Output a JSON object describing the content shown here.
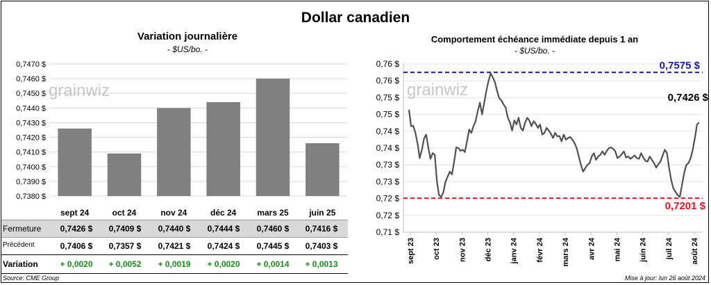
{
  "title": "Dollar canadien",
  "left_chart": {
    "title": "Variation  journalière",
    "unit": "- $US/bo. -",
    "watermark": "grainwiz"
  },
  "right_chart": {
    "title": "Comportement échéance immédiate depuis 1 an",
    "unit": "- $US/bo. -",
    "watermark": "grainwiz",
    "high_label": "0,7575 $",
    "low_label": "0,7201 $",
    "last_label": "0,7426 $"
  },
  "table": {
    "row_labels": [
      "Fermeture",
      "Précédent",
      "Variation"
    ],
    "fermeture": [
      "0,7426  $",
      "0,7409  $",
      "0,7440  $",
      "0,7444  $",
      "0,7460  $",
      "0,7416  $"
    ],
    "precedent": [
      "0,7406  $",
      "0,7357  $",
      "0,7421  $",
      "0,7424  $",
      "0,7445  $",
      "0,7403  $"
    ],
    "variation": [
      "+ 0,0020",
      "+ 0,0052",
      "+ 0,0019",
      "+ 0,0020",
      "+ 0,0014",
      "+ 0,0013"
    ]
  },
  "footer": {
    "source": "Source: CME Group",
    "updated": "Mise à jour: lun 26 août 2024"
  },
  "colors": {
    "bar": "#808080",
    "line": "#505050",
    "high": "#1f1f9c",
    "low": "#e0141e",
    "positive": "#1a8a1a"
  },
  "chart_data": [
    {
      "type": "bar",
      "title": "Variation  journalière",
      "categories": [
        "sept 24",
        "oct 24",
        "nov 24",
        "déc 24",
        "mars 25",
        "juin 25"
      ],
      "values": [
        0.7426,
        0.7409,
        0.744,
        0.7444,
        0.746,
        0.7416
      ],
      "ylim": [
        0.738,
        0.747
      ],
      "yticks": [
        "0,7380 $",
        "0,7390 $",
        "0,7400 $",
        "0,7410 $",
        "0,7420 $",
        "0,7430 $",
        "0,7440 $",
        "0,7450 $",
        "0,7460 $",
        "0,7470 $"
      ],
      "ylabel": "",
      "grid": true
    },
    {
      "type": "line",
      "title": "Comportement échéance immédiate depuis 1 an",
      "ylim": [
        0.71,
        0.76
      ],
      "yticks": [
        "0,71 $",
        "0,72 $",
        "0,72 $",
        "0,73 $",
        "0,73 $",
        "0,74 $",
        "0,74 $",
        "0,75 $",
        "0,75 $",
        "0,76 $",
        "0,76 $"
      ],
      "xticks": [
        "sept 23",
        "oct 23",
        "nov 23",
        "déc 23",
        "janv 24",
        "févr 24",
        "mars 24",
        "avr 24",
        "mai 24",
        "juin 24",
        "juil 24",
        "août 24"
      ],
      "high": 0.7575,
      "low": 0.7201,
      "last": 0.7426,
      "series": [
        {
          "values": [
            0.7464,
            0.7415,
            0.7416,
            0.7395,
            0.7363,
            0.732,
            0.7345,
            0.7378,
            0.739,
            0.7351,
            0.7318,
            0.7335,
            0.733,
            0.725,
            0.721,
            0.7205,
            0.7218,
            0.725,
            0.7265,
            0.728,
            0.7272,
            0.7308,
            0.7352,
            0.735,
            0.7342,
            0.7345,
            0.7338,
            0.737,
            0.7405,
            0.7395,
            0.7415,
            0.743,
            0.746,
            0.7485,
            0.745,
            0.7485,
            0.752,
            0.755,
            0.7572,
            0.756,
            0.7545,
            0.752,
            0.7498,
            0.7492,
            0.748,
            0.747,
            0.744,
            0.7426,
            0.7402,
            0.7432,
            0.742,
            0.744,
            0.741,
            0.7402,
            0.7425,
            0.744,
            0.7432,
            0.7415,
            0.743,
            0.7422,
            0.741,
            0.742,
            0.739,
            0.7395,
            0.741,
            0.7402,
            0.7393,
            0.738,
            0.7395,
            0.7385,
            0.7386,
            0.737,
            0.739,
            0.7375,
            0.738,
            0.7383,
            0.7375,
            0.7365,
            0.735,
            0.7325,
            0.73,
            0.728,
            0.729,
            0.73,
            0.7305,
            0.7325,
            0.7335,
            0.7315,
            0.7325,
            0.733,
            0.734,
            0.733,
            0.7342,
            0.735,
            0.7352,
            0.7348,
            0.734,
            0.732,
            0.7325,
            0.7332,
            0.734,
            0.7322,
            0.7325,
            0.7318,
            0.7323,
            0.7328,
            0.732,
            0.7318,
            0.7335,
            0.7322,
            0.7312,
            0.731,
            0.7325,
            0.7315,
            0.7305,
            0.7292,
            0.7302,
            0.731,
            0.7328,
            0.7345,
            0.7335,
            0.729,
            0.7255,
            0.723,
            0.722,
            0.721,
            0.7205,
            0.724,
            0.7275,
            0.73,
            0.7305,
            0.732,
            0.7345,
            0.738,
            0.742,
            0.7426
          ]
        }
      ]
    }
  ]
}
